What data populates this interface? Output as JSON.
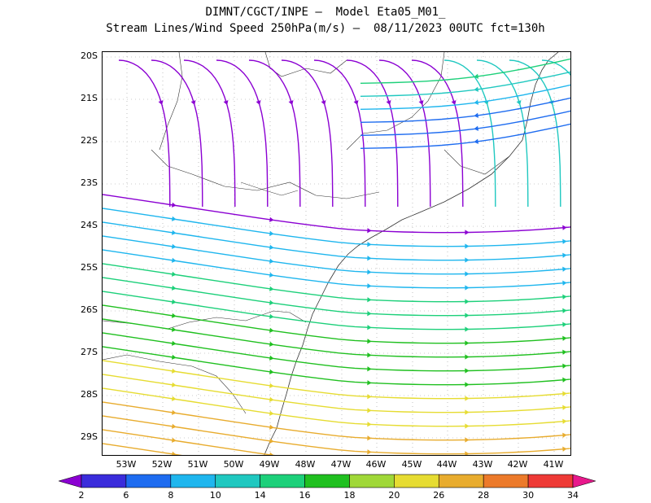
{
  "title_line1": "DIMNT/CGCT/INPE –  Model Eta05_M01_",
  "title_line2": "Stream Lines/Wind Speed 250hPa(m/s) –  08/11/2023 00UTC fct=130h",
  "lat_labels": [
    "20S",
    "21S",
    "22S",
    "23S",
    "24S",
    "25S",
    "26S",
    "27S",
    "28S",
    "29S"
  ],
  "lon_labels": [
    "53W",
    "52W",
    "51W",
    "50W",
    "49W",
    "48W",
    "47W",
    "46W",
    "45W",
    "44W",
    "43W",
    "42W",
    "41W"
  ],
  "colorbar": {
    "labels": [
      "2",
      "6",
      "8",
      "10",
      "14",
      "16",
      "18",
      "20",
      "26",
      "28",
      "30",
      "34"
    ],
    "colors": [
      "#8b00d2",
      "#3a2cdb",
      "#1e6cf0",
      "#1fb6ee",
      "#20c8c0",
      "#1dd07a",
      "#20c020",
      "#a0d838",
      "#e6dc32",
      "#e8ac2e",
      "#ec7a2a",
      "#ee3a36",
      "#e8188c"
    ]
  }
}
